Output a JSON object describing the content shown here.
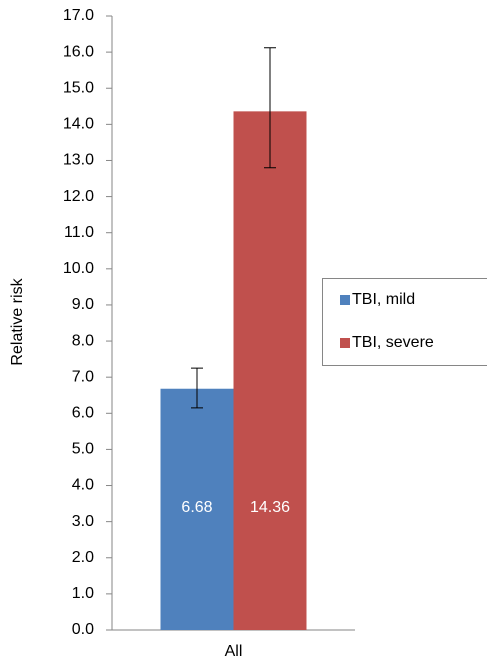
{
  "chart_data": {
    "type": "bar",
    "y_label": "Relative risk",
    "categories": [
      "All"
    ],
    "series": [
      {
        "name": "TBI, mild",
        "color": "#4f81bd",
        "values": [
          6.68
        ],
        "ci_low": [
          6.15
        ],
        "ci_high": [
          7.25
        ]
      },
      {
        "name": "TBI, severe",
        "color": "#c0504d",
        "values": [
          14.36
        ],
        "ci_low": [
          12.8
        ],
        "ci_high": [
          16.12
        ]
      }
    ],
    "ylim": [
      0,
      17
    ],
    "yticks": [
      {
        "value": 0,
        "label": "0.0"
      },
      {
        "value": 1,
        "label": "1.0"
      },
      {
        "value": 2,
        "label": "2.0"
      },
      {
        "value": 3,
        "label": "3.0"
      },
      {
        "value": 4,
        "label": "4.0"
      },
      {
        "value": 5,
        "label": "5.0"
      },
      {
        "value": 6,
        "label": "6.0"
      },
      {
        "value": 7,
        "label": "7.0"
      },
      {
        "value": 8,
        "label": "8.0"
      },
      {
        "value": 9,
        "label": "9.0"
      },
      {
        "value": 10,
        "label": "10.0"
      },
      {
        "value": 11,
        "label": "11.0"
      },
      {
        "value": 12,
        "label": "12.0"
      },
      {
        "value": 13,
        "label": "13.0"
      },
      {
        "value": 14,
        "label": "14.0"
      },
      {
        "value": 15,
        "label": "15.0"
      },
      {
        "value": 16,
        "label": "16.0"
      },
      {
        "value": 17,
        "label": "17.0"
      }
    ],
    "grid": false,
    "legend": "right"
  }
}
